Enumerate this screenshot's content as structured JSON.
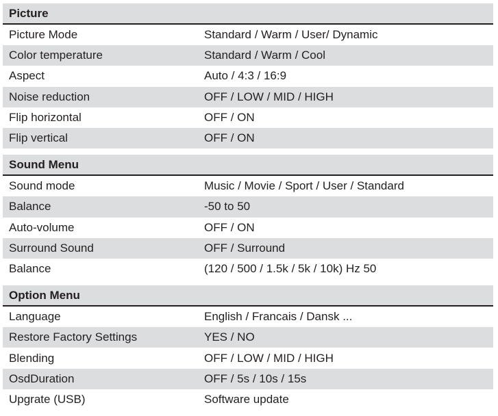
{
  "sections": [
    {
      "title": "Picture",
      "rows": [
        {
          "setting": "Picture Mode",
          "options": "Standard / Warm / User/ Dynamic"
        },
        {
          "setting": "Color temperature",
          "options": "Standard / Warm / Cool"
        },
        {
          "setting": "Aspect",
          "options": "Auto / 4:3 / 16:9"
        },
        {
          "setting": "Noise reduction",
          "options": "OFF / LOW / MID / HIGH"
        },
        {
          "setting": "Flip horizontal",
          "options": "OFF / ON"
        },
        {
          "setting": "Flip vertical",
          "options": "OFF / ON"
        }
      ]
    },
    {
      "title": "Sound Menu",
      "rows": [
        {
          "setting": "Sound mode",
          "options": "Music / Movie / Sport / User / Standard"
        },
        {
          "setting": "Balance",
          "options": "-50 to 50"
        },
        {
          "setting": "Auto-volume",
          "options": "OFF / ON"
        },
        {
          "setting": "Surround Sound",
          "options": "OFF / Surround"
        },
        {
          "setting": "Balance",
          "options": "(120 / 500 / 1.5k / 5k / 10k) Hz 50"
        }
      ]
    },
    {
      "title": "Option Menu",
      "rows": [
        {
          "setting": "Language",
          "options": "English / Francais / Dansk ..."
        },
        {
          "setting": "Restore Factory Settings",
          "options": "YES / NO"
        },
        {
          "setting": "Blending",
          "options": "OFF / LOW / MID / HIGH"
        },
        {
          "setting": "OsdDuration",
          "options": "OFF / 5s / 10s / 15s"
        },
        {
          "setting": "Upgrate (USB)",
          "options": "Software update"
        }
      ]
    }
  ],
  "colors": {
    "row_alt": "#dcdddf",
    "text": "#231f20"
  }
}
